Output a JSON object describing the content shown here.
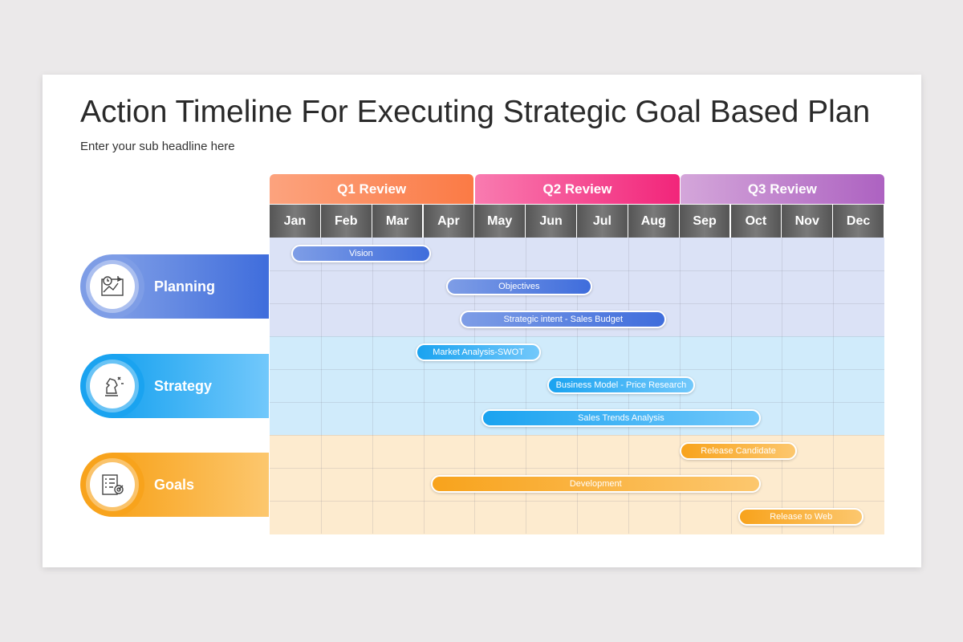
{
  "title": "Action Timeline For Executing Strategic Goal Based Plan",
  "subtitle": "Enter your sub headline here",
  "quarters": [
    {
      "label": "Q1 Review",
      "from": "#fca37e",
      "to": "#fb7a45"
    },
    {
      "label": "Q2 Review",
      "from": "#f97bb0",
      "to": "#f2257a"
    },
    {
      "label": "Q3 Review",
      "from": "#d4a6da",
      "to": "#ad62c1"
    }
  ],
  "months": [
    "Jan",
    "Feb",
    "Mar",
    "Apr",
    "May",
    "Jun",
    "Jul",
    "Aug",
    "Sep",
    "Oct",
    "Nov",
    "Dec"
  ],
  "groups": [
    {
      "label": "Planning",
      "icon": "planning-map-icon",
      "band": "#dbe2f6",
      "from": "#7e9de6",
      "to": "#3f6ddc",
      "tasks": [
        {
          "label": "Vision",
          "start": 0.42,
          "end": 3.15
        },
        {
          "label": "Objectives",
          "start": 3.44,
          "end": 6.3
        },
        {
          "label": "Strategic intent - Sales Budget",
          "start": 3.72,
          "end": 7.74
        }
      ]
    },
    {
      "label": "Strategy",
      "icon": "chess-knight-icon",
      "band": "#d0ebfb",
      "from": "#1aa3f0",
      "to": "#72c8fb",
      "tasks": [
        {
          "label": "Market Analysis-SWOT",
          "start": 2.85,
          "end": 5.3
        },
        {
          "label": "Business Model - Price Research",
          "start": 5.42,
          "end": 8.3
        },
        {
          "label": "Sales Trends Analysis",
          "start": 4.14,
          "end": 9.58
        }
      ]
    },
    {
      "label": "Goals",
      "icon": "checklist-target-icon",
      "band": "#fdebcf",
      "from": "#f8a31c",
      "to": "#fcc76e",
      "tasks": [
        {
          "label": "Release Candidate",
          "start": 8.0,
          "end": 10.3
        },
        {
          "label": "Development",
          "start": 3.15,
          "end": 9.58
        },
        {
          "label": "Release to Web",
          "start": 9.15,
          "end": 11.6
        }
      ]
    }
  ]
}
